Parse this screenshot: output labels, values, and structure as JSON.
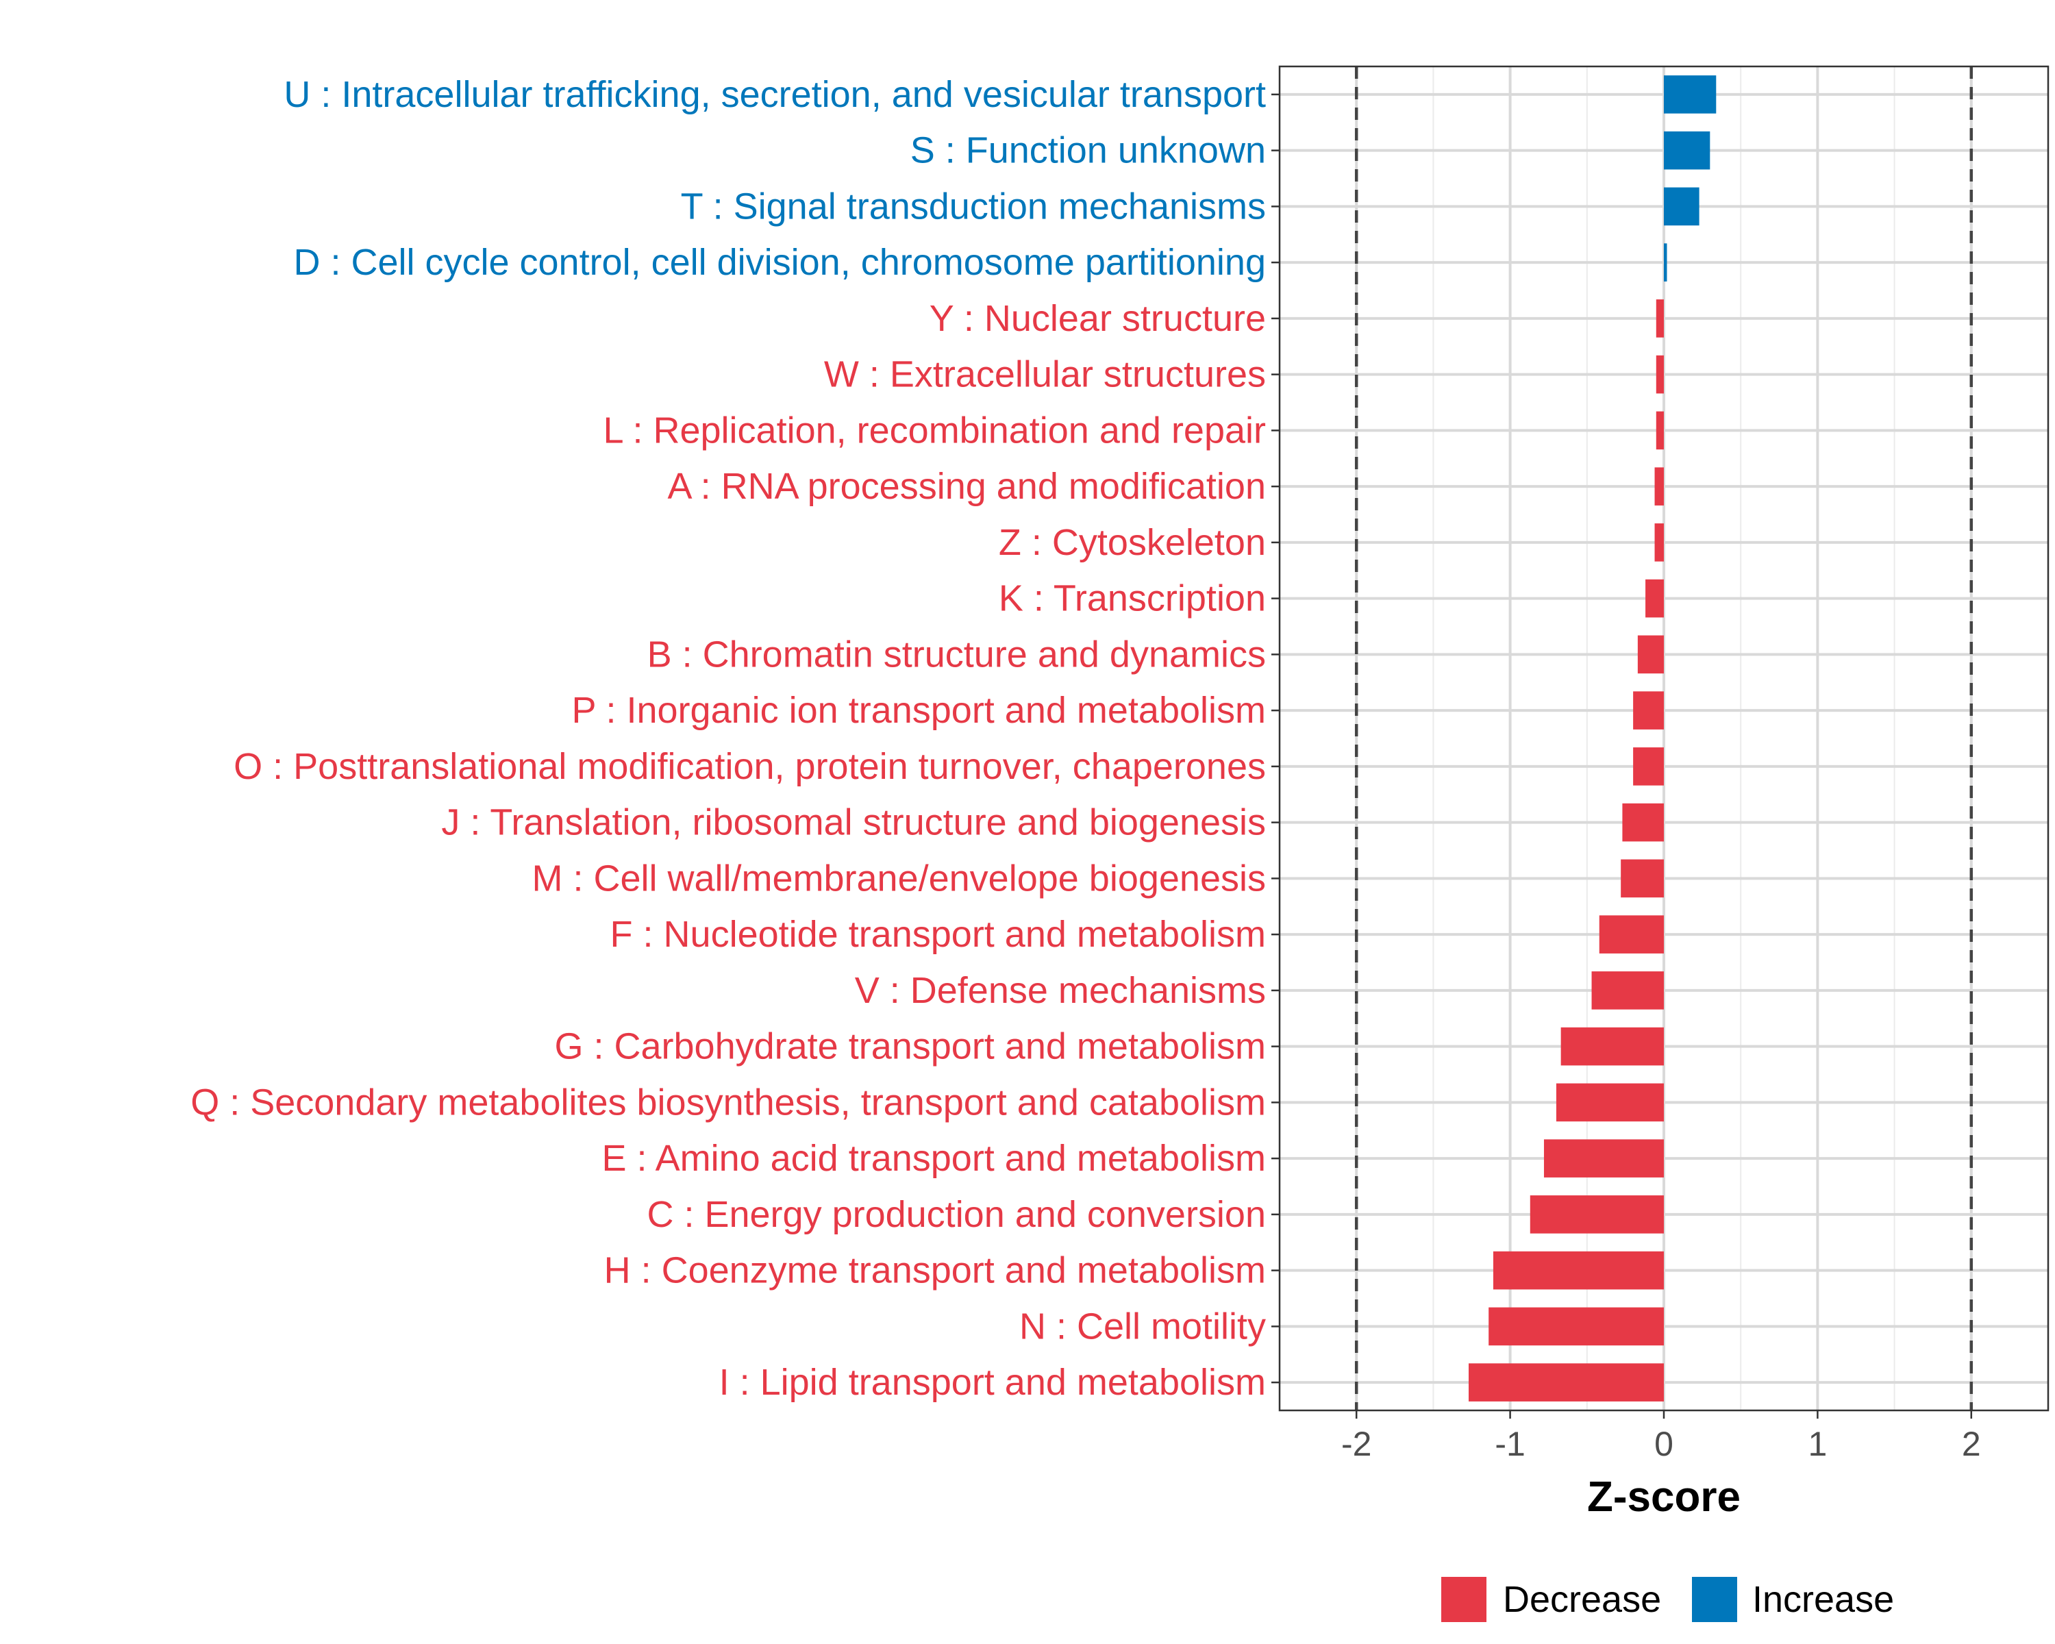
{
  "chart_data": {
    "type": "bar",
    "orientation": "horizontal",
    "xlabel": "Z-score",
    "xlim": [
      -2.5,
      2.5
    ],
    "x_ticks": [
      -2,
      -1,
      0,
      1,
      2
    ],
    "x_tick_labels": [
      "-2",
      "-1",
      "0",
      "1",
      "2"
    ],
    "reference_lines": [
      -2,
      2
    ],
    "grid": true,
    "legend_position": "bottom",
    "colors": {
      "Decrease": "#e63946",
      "Increase": "#0077bb"
    },
    "categories": [
      "U : Intracellular trafficking, secretion, and vesicular transport",
      "S : Function unknown",
      "T : Signal transduction mechanisms",
      "D : Cell cycle control, cell division, chromosome partitioning",
      "Y : Nuclear structure",
      "W : Extracellular structures",
      "L : Replication, recombination and repair",
      "A : RNA processing and modification",
      "Z : Cytoskeleton",
      "K : Transcription",
      "B : Chromatin structure and dynamics",
      "P : Inorganic ion transport and metabolism",
      "O : Posttranslational modification, protein turnover, chaperones",
      "J : Translation, ribosomal structure and biogenesis",
      "M : Cell wall/membrane/envelope biogenesis",
      "F : Nucleotide transport and metabolism",
      "V : Defense mechanisms",
      "G : Carbohydrate transport and metabolism",
      "Q : Secondary metabolites biosynthesis, transport and catabolism",
      "E : Amino acid transport and metabolism",
      "C : Energy production and conversion",
      "H : Coenzyme transport and metabolism",
      "N : Cell motility",
      "I : Lipid transport and metabolism"
    ],
    "values": [
      0.34,
      0.3,
      0.23,
      0.02,
      -0.05,
      -0.05,
      -0.05,
      -0.06,
      -0.06,
      -0.12,
      -0.17,
      -0.2,
      -0.2,
      -0.27,
      -0.28,
      -0.42,
      -0.47,
      -0.67,
      -0.7,
      -0.78,
      -0.87,
      -1.11,
      -1.14,
      -1.27
    ],
    "groups": [
      "Increase",
      "Increase",
      "Increase",
      "Increase",
      "Decrease",
      "Decrease",
      "Decrease",
      "Decrease",
      "Decrease",
      "Decrease",
      "Decrease",
      "Decrease",
      "Decrease",
      "Decrease",
      "Decrease",
      "Decrease",
      "Decrease",
      "Decrease",
      "Decrease",
      "Decrease",
      "Decrease",
      "Decrease",
      "Decrease",
      "Decrease"
    ],
    "legend": [
      "Decrease",
      "Increase"
    ]
  }
}
